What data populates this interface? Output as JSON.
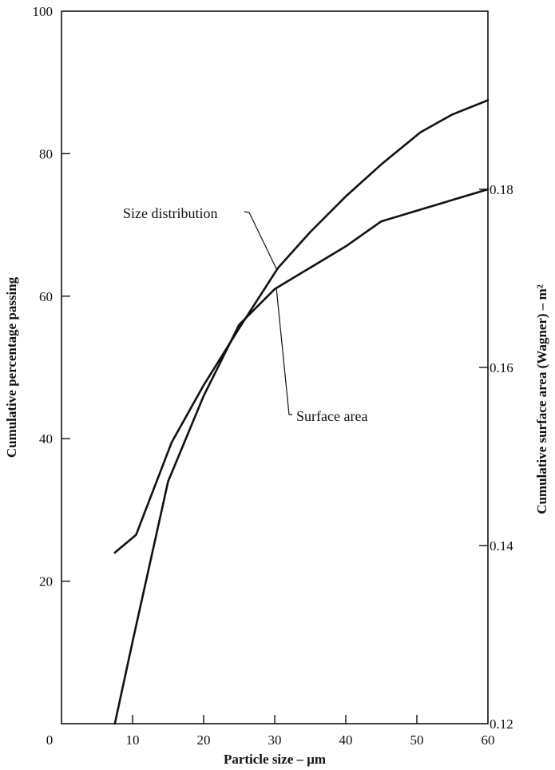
{
  "chart_data": {
    "type": "line",
    "title": "",
    "xlabel": "Particle size – μm",
    "ylabel": "Cumulative percentage passing",
    "y2label": "Cumulative surface area (Wagner) – m²",
    "xlim": [
      0,
      60
    ],
    "ylim": [
      0,
      100
    ],
    "y2lim": [
      0.12,
      0.2
    ],
    "x_ticks": [
      "0",
      "10",
      "20",
      "30",
      "40",
      "50",
      "60"
    ],
    "y_ticks": [
      "20",
      "40",
      "60",
      "80",
      "100"
    ],
    "y2_ticks": [
      "0.12",
      "0.14",
      "0.16",
      "0.18"
    ],
    "grid": false,
    "series": [
      {
        "name": "Size distribution",
        "axis": "left",
        "x": [
          7.5,
          10.5,
          15.5,
          20,
          25,
          30.5,
          35,
          40,
          45,
          50.5,
          55,
          60
        ],
        "y": [
          24,
          26.5,
          39.5,
          47.5,
          55.5,
          64,
          69,
          74,
          78.5,
          83,
          85.5,
          87.5
        ]
      },
      {
        "name": "Surface area",
        "axis": "right",
        "x": [
          7.5,
          10,
          15,
          20,
          25,
          30,
          35,
          40,
          45,
          50,
          55,
          60
        ],
        "y": [
          0.12,
          0.1292,
          0.1472,
          0.1568,
          0.1648,
          0.1688,
          0.1712,
          0.1736,
          0.1764,
          0.1776,
          0.1788,
          0.18
        ]
      }
    ],
    "annotations": [
      {
        "text": "Size distribution",
        "series": 0
      },
      {
        "text": "Surface area",
        "series": 1
      }
    ]
  }
}
